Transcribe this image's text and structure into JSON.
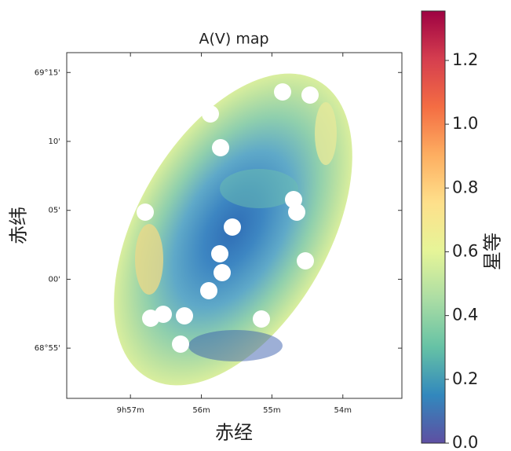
{
  "chart_data": {
    "type": "image",
    "title": "A(V) map",
    "x_label": "赤经",
    "y_label": "赤纬",
    "colorbar_label": "星等",
    "xlim": [
      9.965,
      9.8861
    ],
    "xticks": [
      {
        "value": 9.95,
        "label": "9h57m"
      },
      {
        "value": 9.9333,
        "label": "56m"
      },
      {
        "value": 9.9167,
        "label": "55m"
      },
      {
        "value": 9.9,
        "label": "54m"
      }
    ],
    "ylim": [
      68.856,
      69.274
    ],
    "yticks": [
      {
        "value": 68.9167,
        "label": "68°55'"
      },
      {
        "value": 69.0,
        "label": "00'"
      },
      {
        "value": 69.0833,
        "label": "05'"
      },
      {
        "value": 69.1667,
        "label": "10'"
      },
      {
        "value": 69.25,
        "label": "69°15'"
      }
    ],
    "clim": [
      0,
      1.355
    ],
    "cticks": [
      {
        "value": 0,
        "label": "0.0"
      },
      0.2,
      0.4,
      0.6,
      0.8,
      {
        "value": 1,
        "label": "1.0"
      },
      1.2
    ],
    "colormap": [
      "#5e4fa2",
      "#3288bd",
      "#66c2a5",
      "#abdda4",
      "#e6f598",
      "#fee08b",
      "#fdae61",
      "#f46d43",
      "#d53e4f",
      "#9e0142"
    ]
  }
}
